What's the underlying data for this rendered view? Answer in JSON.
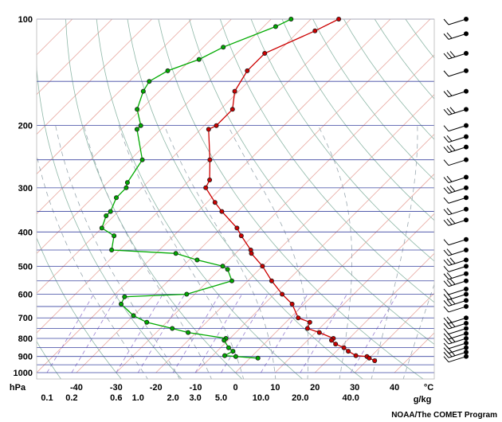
{
  "chart_data": {
    "type": "skew-t log-p sounding",
    "pressure_unit": "hPa",
    "temp_unit": "°C",
    "mixing_ratio_unit": "g/kg",
    "pressure_ticks": [
      100,
      200,
      300,
      400,
      500,
      600,
      700,
      800,
      900,
      1000
    ],
    "pressure_ylim": [
      100,
      1000
    ],
    "temp_ticks": [
      -40,
      -30,
      -20,
      -10,
      0,
      10,
      20,
      30,
      40
    ],
    "temp_xlim_at_1000hPa": [
      -50,
      50
    ],
    "mixing_ratio_ticks": [
      {
        "value": "0.1",
        "temp": -47.4
      },
      {
        "value": "0.2",
        "temp": -41.2
      },
      {
        "value": "0.6",
        "temp": -30.0
      },
      {
        "value": "1.0",
        "temp": -24.5
      },
      {
        "value": "2.0",
        "temp": -15.7
      },
      {
        "value": "3.0",
        "temp": -10.1
      },
      {
        "value": "5.0",
        "temp": -3.6
      },
      {
        "value": "10.0",
        "temp": 6.4
      },
      {
        "value": "20.0",
        "temp": 16.3
      },
      {
        "value": "40.0",
        "temp": 29.0
      }
    ],
    "isobar_lines_hpa": [
      100,
      150,
      200,
      250,
      300,
      350,
      400,
      450,
      500,
      550,
      600,
      650,
      700,
      750,
      800,
      850,
      900,
      950,
      1000
    ],
    "series": [
      {
        "color": "#cc0000",
        "points": [
          [
            100,
            -63
          ],
          [
            108,
            -66
          ],
          [
            125,
            -73
          ],
          [
            140,
            -73
          ],
          [
            160,
            -71
          ],
          [
            180,
            -67
          ],
          [
            200,
            -67
          ],
          [
            205,
            -68
          ],
          [
            250,
            -60
          ],
          [
            285,
            -55
          ],
          [
            300,
            -54
          ],
          [
            330,
            -48
          ],
          [
            350,
            -44
          ],
          [
            390,
            -36
          ],
          [
            410,
            -33
          ],
          [
            450,
            -27
          ],
          [
            460,
            -26
          ],
          [
            500,
            -20
          ],
          [
            550,
            -14
          ],
          [
            600,
            -8
          ],
          [
            640,
            -3
          ],
          [
            700,
            2
          ],
          [
            720,
            6
          ],
          [
            750,
            7
          ],
          [
            770,
            11
          ],
          [
            800,
            16
          ],
          [
            810,
            16
          ],
          [
            830,
            18
          ],
          [
            850,
            21
          ],
          [
            870,
            23
          ],
          [
            895,
            26
          ],
          [
            900,
            29
          ],
          [
            910,
            30
          ],
          [
            925,
            32
          ]
        ]
      },
      {
        "color": "#00aa00",
        "points": [
          [
            100,
            -75
          ],
          [
            105,
            -77
          ],
          [
            120,
            -85
          ],
          [
            130,
            -88
          ],
          [
            140,
            -93
          ],
          [
            150,
            -95
          ],
          [
            160,
            -94
          ],
          [
            180,
            -91
          ],
          [
            200,
            -86
          ],
          [
            205,
            -86
          ],
          [
            250,
            -77
          ],
          [
            290,
            -75
          ],
          [
            300,
            -74
          ],
          [
            320,
            -74
          ],
          [
            350,
            -72
          ],
          [
            360,
            -72
          ],
          [
            390,
            -70
          ],
          [
            410,
            -65
          ],
          [
            450,
            -62
          ],
          [
            460,
            -45
          ],
          [
            480,
            -38
          ],
          [
            500,
            -30
          ],
          [
            510,
            -28
          ],
          [
            550,
            -24
          ],
          [
            600,
            -32
          ],
          [
            610,
            -47
          ],
          [
            640,
            -46
          ],
          [
            690,
            -40
          ],
          [
            720,
            -35
          ],
          [
            750,
            -27
          ],
          [
            770,
            -22
          ],
          [
            800,
            -11
          ],
          [
            810,
            -11
          ],
          [
            850,
            -8
          ],
          [
            870,
            -6
          ],
          [
            895,
            -7
          ],
          [
            900,
            -4
          ],
          [
            910,
            2
          ]
        ]
      }
    ],
    "wind_barb_levels_hpa": [
      100,
      110,
      125,
      140,
      160,
      180,
      200,
      215,
      230,
      250,
      280,
      300,
      320,
      345,
      370,
      420,
      450,
      480,
      500,
      525,
      550,
      580,
      600,
      625,
      650,
      700,
      725,
      750,
      775,
      800,
      825,
      850,
      875,
      900
    ],
    "footer_credit": "NOAA/The COMET Program"
  }
}
